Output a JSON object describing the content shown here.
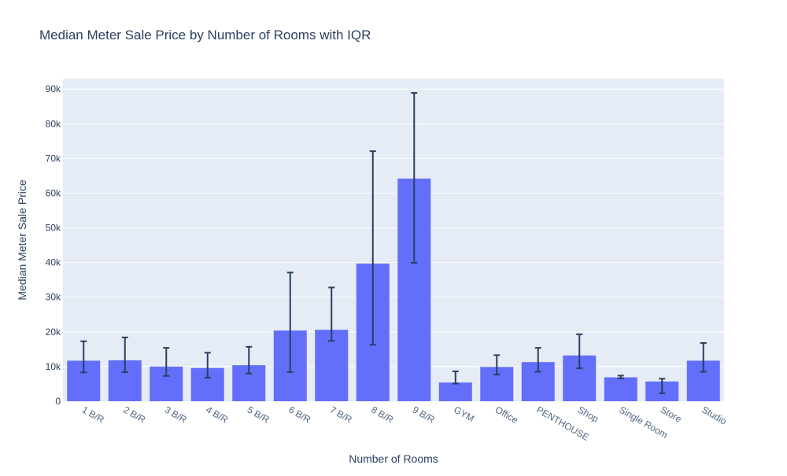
{
  "chart_data": {
    "type": "bar",
    "title": "Median Meter Sale Price by Number of Rooms with IQR",
    "xlabel": "Number of Rooms",
    "ylabel": "Median Meter Sale Price",
    "ylim": [
      0,
      93000
    ],
    "yticks": [
      0,
      10000,
      20000,
      30000,
      40000,
      50000,
      60000,
      70000,
      80000,
      90000
    ],
    "ytick_labels": [
      "0",
      "10k",
      "20k",
      "30k",
      "40k",
      "50k",
      "60k",
      "70k",
      "80k",
      "90k"
    ],
    "grid": true,
    "categories": [
      "1 B/R",
      "2 B/R",
      "3 B/R",
      "4 B/R",
      "5 B/R",
      "6 B/R",
      "7 B/R",
      "8 B/R",
      "9 B/R",
      "GYM",
      "Office",
      "PENTHOUSE",
      "Shop",
      "Single Room",
      "Store",
      "Studio"
    ],
    "values": [
      11700,
      11800,
      10000,
      9600,
      10400,
      20400,
      20600,
      39700,
      64200,
      5400,
      9900,
      11300,
      13200,
      6900,
      5700,
      11700
    ],
    "error_upper": [
      17300,
      18400,
      15400,
      14000,
      15700,
      37100,
      32800,
      72100,
      88900,
      8600,
      13300,
      15400,
      19300,
      7400,
      6500,
      16800
    ],
    "error_lower": [
      8300,
      8400,
      7300,
      6800,
      8000,
      8400,
      17400,
      16300,
      39900,
      5100,
      7700,
      8500,
      9500,
      6600,
      2300,
      8500
    ],
    "colors": {
      "bar": "#636efa",
      "error": "#2a3f5f",
      "plot_bg": "#e5ecf6",
      "grid": "#ffffff",
      "text": "#2a3f5f",
      "tick_text": "#506784"
    }
  }
}
